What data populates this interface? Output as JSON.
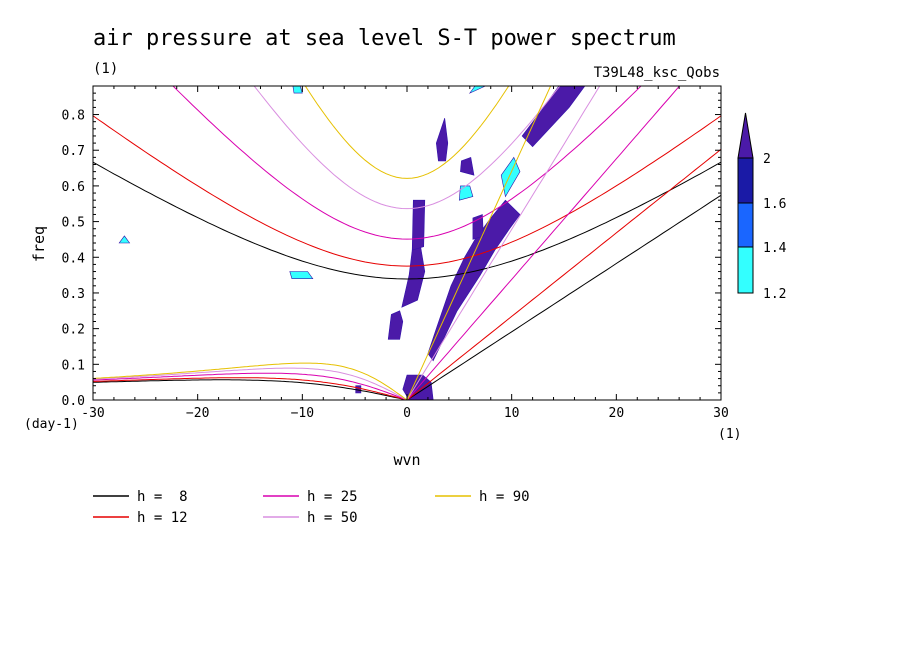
{
  "chart_data": {
    "type": "contour",
    "title": "air pressure at sea level S-T power spectrum",
    "subtitle_left": "(1)",
    "subtitle_right": "T39L48_ksc_Qobs",
    "xlabel": "wvn",
    "ylabel": "freq",
    "x_unit": "(1)",
    "y_unit": "(day-1)",
    "xlim": [
      -30,
      30
    ],
    "ylim": [
      0,
      0.88
    ],
    "x_ticks": [
      -30,
      -20,
      -10,
      0,
      10,
      20,
      30
    ],
    "x_tick_labels": [
      "-30",
      "−20",
      "−10",
      "0",
      "10",
      "20",
      "30"
    ],
    "y_ticks": [
      0.0,
      0.1,
      0.2,
      0.3,
      0.4,
      0.5,
      0.6,
      0.7,
      0.8
    ],
    "y_tick_labels": [
      "0.0",
      "0.1",
      "0.2",
      "0.3",
      "0.4",
      "0.5",
      "0.6",
      "0.7",
      "0.8"
    ],
    "colorbar": {
      "levels": [
        "1.2",
        "1.4",
        "1.6",
        "2"
      ],
      "colors": [
        "#33ffff",
        "#1a66ff",
        "#1a1aa6",
        "#4b1aa8"
      ]
    },
    "dispersion_curves": [
      {
        "label": "h =  8",
        "h": 8,
        "color": "#000000"
      },
      {
        "label": "h = 12",
        "h": 12,
        "color": "#e60000"
      },
      {
        "label": "h = 25",
        "h": 25,
        "color": "#d900b0"
      },
      {
        "label": "h = 50",
        "h": 50,
        "color": "#d98fe0"
      },
      {
        "label": "h = 90",
        "h": 90,
        "color": "#e6c000"
      }
    ],
    "shaded_regions": [
      {
        "level": "2",
        "points": [
          [
            0.2,
            0.0
          ],
          [
            2.5,
            0.0
          ],
          [
            2.3,
            0.05
          ],
          [
            1.5,
            0.07
          ],
          [
            0.0,
            0.07
          ],
          [
            -0.4,
            0.03
          ]
        ]
      },
      {
        "level": "2",
        "points": [
          [
            2.8,
            0.72
          ],
          [
            3.6,
            0.79
          ],
          [
            3.9,
            0.72
          ],
          [
            3.7,
            0.67
          ],
          [
            3.0,
            0.67
          ]
        ]
      },
      {
        "level": "2",
        "points": [
          [
            -1.8,
            0.17
          ],
          [
            -0.7,
            0.17
          ],
          [
            -0.4,
            0.22
          ],
          [
            -0.7,
            0.25
          ],
          [
            -1.5,
            0.24
          ]
        ]
      },
      {
        "level": "2",
        "points": [
          [
            -0.5,
            0.26
          ],
          [
            1.0,
            0.28
          ],
          [
            1.7,
            0.36
          ],
          [
            1.3,
            0.43
          ],
          [
            0.5,
            0.42
          ],
          [
            0.2,
            0.35
          ]
        ]
      },
      {
        "level": "2",
        "points": [
          [
            0.5,
            0.42
          ],
          [
            1.6,
            0.43
          ],
          [
            1.7,
            0.56
          ],
          [
            0.6,
            0.56
          ]
        ]
      },
      {
        "level": "2",
        "points": [
          [
            2.5,
            0.11
          ],
          [
            4.8,
            0.25
          ],
          [
            7.0,
            0.35
          ],
          [
            8.4,
            0.42
          ],
          [
            9.8,
            0.48
          ],
          [
            10.8,
            0.52
          ],
          [
            9.4,
            0.56
          ],
          [
            8.0,
            0.51
          ],
          [
            6.5,
            0.45
          ],
          [
            5.5,
            0.4
          ],
          [
            4.2,
            0.32
          ],
          [
            2.8,
            0.2
          ],
          [
            2.0,
            0.13
          ]
        ]
      },
      {
        "level": "2",
        "points": [
          [
            6.3,
            0.45
          ],
          [
            7.3,
            0.46
          ],
          [
            7.2,
            0.52
          ],
          [
            6.3,
            0.51
          ]
        ]
      },
      {
        "level": "2",
        "points": [
          [
            5.1,
            0.64
          ],
          [
            6.4,
            0.63
          ],
          [
            6.1,
            0.68
          ],
          [
            5.2,
            0.67
          ]
        ]
      },
      {
        "level": "2",
        "points": [
          [
            12.0,
            0.71
          ],
          [
            15.5,
            0.82
          ],
          [
            17.0,
            0.88
          ],
          [
            14.5,
            0.88
          ],
          [
            12.8,
            0.81
          ],
          [
            11.0,
            0.74
          ]
        ]
      },
      {
        "level": "2",
        "points": [
          [
            -4.9,
            0.04
          ],
          [
            -4.4,
            0.04
          ],
          [
            -4.4,
            0.02
          ],
          [
            -4.9,
            0.02
          ]
        ]
      },
      {
        "level": "1.2",
        "points": [
          [
            5.0,
            0.56
          ],
          [
            6.3,
            0.57
          ],
          [
            6.0,
            0.6
          ],
          [
            5.1,
            0.6
          ]
        ]
      },
      {
        "level": "1.2",
        "points": [
          [
            9.4,
            0.57
          ],
          [
            10.8,
            0.64
          ],
          [
            10.2,
            0.68
          ],
          [
            9.0,
            0.63
          ]
        ]
      },
      {
        "level": "1.2",
        "points": [
          [
            6.0,
            0.86
          ],
          [
            7.5,
            0.88
          ],
          [
            6.5,
            0.88
          ]
        ]
      },
      {
        "level": "1.2",
        "points": [
          [
            -11.0,
            0.34
          ],
          [
            -9.0,
            0.34
          ],
          [
            -9.5,
            0.36
          ],
          [
            -11.2,
            0.36
          ]
        ]
      },
      {
        "level": "1.2",
        "points": [
          [
            -27.5,
            0.44
          ],
          [
            -26.5,
            0.44
          ],
          [
            -27.0,
            0.46
          ]
        ]
      },
      {
        "level": "1.2",
        "points": [
          [
            -10.8,
            0.86
          ],
          [
            -10.0,
            0.86
          ],
          [
            -10.2,
            0.88
          ],
          [
            -10.9,
            0.88
          ]
        ]
      }
    ]
  },
  "legend": {
    "items": [
      {
        "label": "h =  8",
        "color": "#000000"
      },
      {
        "label": "h = 12",
        "color": "#e60000"
      },
      {
        "label": "h = 25",
        "color": "#d900b0"
      },
      {
        "label": "h = 50",
        "color": "#d98fe0"
      },
      {
        "label": "h = 90",
        "color": "#e6c000"
      }
    ]
  }
}
